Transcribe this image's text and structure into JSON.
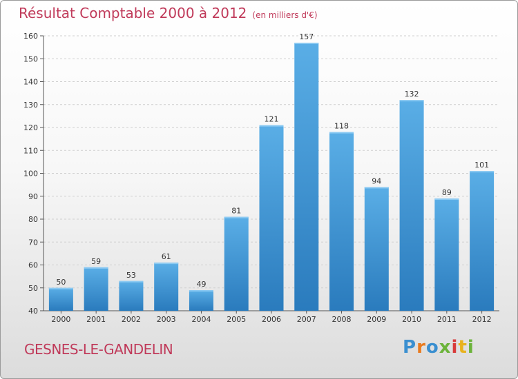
{
  "header": {
    "title": "Résultat Comptable 2000 à 2012",
    "subtitle": "(en milliers d'€)"
  },
  "footer": {
    "place": "GESNES-LE-GANDELIN",
    "brand": "Proxiti"
  },
  "colors": {
    "accent": "#c03a5a",
    "bar_top": "#5aaee6",
    "bar_bottom": "#2a7bbd"
  },
  "chart_data": {
    "type": "bar",
    "title": "Résultat Comptable 2000 à 2012",
    "subtitle": "(en milliers d'€)",
    "categories": [
      "2000",
      "2001",
      "2002",
      "2003",
      "2004",
      "2005",
      "2006",
      "2007",
      "2008",
      "2009",
      "2010",
      "2011",
      "2012"
    ],
    "values": [
      50,
      59,
      53,
      61,
      49,
      81,
      121,
      157,
      118,
      94,
      132,
      89,
      101
    ],
    "ylim": [
      40,
      160
    ],
    "yticks": [
      40,
      50,
      60,
      70,
      80,
      90,
      100,
      110,
      120,
      130,
      140,
      150,
      160
    ],
    "xlabel": "",
    "ylabel": "",
    "grid": true
  }
}
